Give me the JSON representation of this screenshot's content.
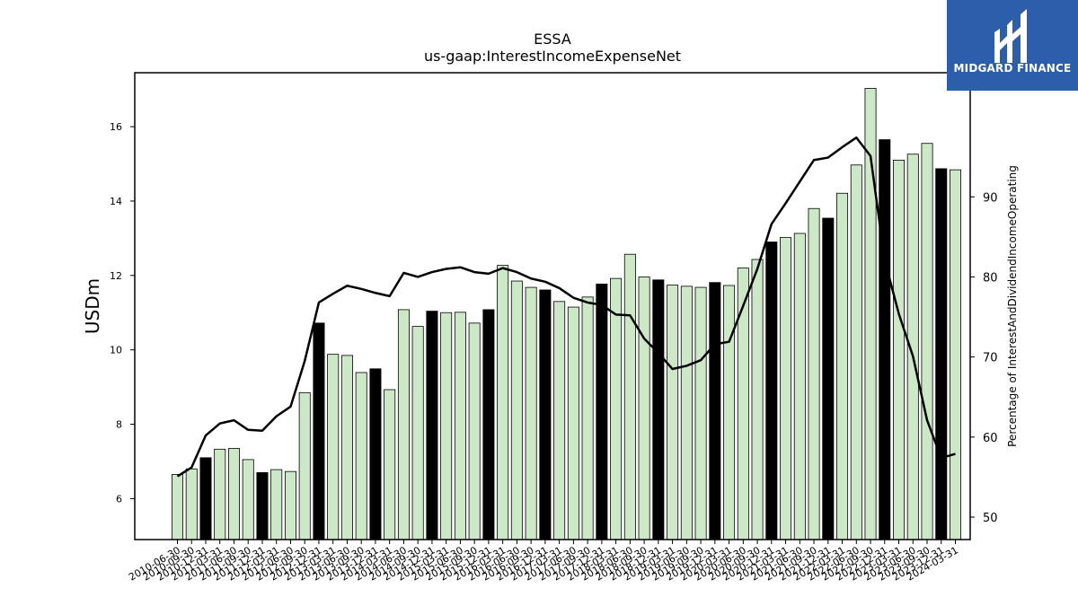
{
  "chart_data": {
    "type": "bar",
    "title": "ESSA",
    "subtitle": "us-gaap:InterestIncomeExpenseNet",
    "ylabel": "USDm",
    "y2label": "Percentage of InterestAndDividendIncomeOperating",
    "ylim": [
      4.9,
      17.45
    ],
    "y2lim": [
      47.2,
      105.5
    ],
    "yticks": [
      6,
      8,
      10,
      12,
      14,
      16
    ],
    "y2ticks": [
      50,
      60,
      70,
      80,
      90
    ],
    "grid": false,
    "categories": [
      "2010-06-30",
      "2010-09-30",
      "2010-12-31",
      "2011-03-31",
      "2011-06-30",
      "2011-09-30",
      "2011-12-31",
      "2012-03-31",
      "2012-06-30",
      "2012-09-30",
      "2012-12-31",
      "2013-03-31",
      "2013-06-30",
      "2013-09-30",
      "2013-12-31",
      "2014-03-31",
      "2014-06-30",
      "2014-09-30",
      "2014-12-31",
      "2015-03-31",
      "2015-06-30",
      "2015-09-30",
      "2015-12-31",
      "2016-03-31",
      "2016-06-30",
      "2016-09-30",
      "2016-12-31",
      "2017-03-31",
      "2017-06-30",
      "2017-09-30",
      "2017-12-31",
      "2018-03-31",
      "2018-06-30",
      "2018-09-30",
      "2018-12-31",
      "2019-03-31",
      "2019-06-30",
      "2019-09-30",
      "2019-12-31",
      "2020-03-31",
      "2020-06-30",
      "2020-09-30",
      "2020-12-31",
      "2021-03-31",
      "2021-06-30",
      "2021-09-30",
      "2021-12-31",
      "2022-03-31",
      "2022-06-30",
      "2022-09-30",
      "2022-12-31",
      "2023-03-31",
      "2023-06-30",
      "2023-09-30",
      "2023-12-31",
      "2024-03-31"
    ],
    "xtick_labels": [
      "2010-06-30",
      "2010-09-30",
      "2010-12-31",
      "2011-03-31",
      "2011-06-30",
      "2011-09-30",
      "2011-12-31",
      "2012-03-31",
      "2012-06-30",
      "2012-09-30",
      "2012-12-31",
      "2013-03-31",
      "2013-06-30",
      "2013-09-30",
      "2013-12-31",
      "2014-03-31",
      "2014-06-30",
      "2014-09-30",
      "2014-12-31",
      "2015-03-31",
      "2015-06-30",
      "2015-09-30",
      "2015-12-31",
      "2016-03-31",
      "2016-06-30",
      "2016-09-30",
      "2016-12-31",
      "2017-03-31",
      "2017-06-30",
      "2017-09-30",
      "2017-12-31",
      "2018-03-31",
      "2018-06-30",
      "2018-09-30",
      "2018-12-31",
      "2019-03-31",
      "2019-06-30",
      "2019-09-30",
      "2019-12-31",
      "2020-03-31",
      "2020-06-30",
      "2020-09-30",
      "2020-12-31",
      "2021-03-31",
      "2021-06-30",
      "2021-09-30",
      "2021-12-31",
      "2022-03-31",
      "2022-06-30",
      "2022-09-30",
      "2022-12-31",
      "2023-03-31",
      "2023-06-30",
      "2023-09-30",
      "2023-12-31",
      "2024-03-31"
    ],
    "series": [
      {
        "axis": "left",
        "kind": "bar",
        "values": [
          6.65,
          6.8,
          7.1,
          7.33,
          7.35,
          7.05,
          6.7,
          6.78,
          6.73,
          8.85,
          10.72,
          9.88,
          9.85,
          9.39,
          9.49,
          8.93,
          11.08,
          10.63,
          11.04,
          11,
          11.01,
          10.72,
          11.08,
          12.27,
          11.85,
          11.68,
          11.61,
          11.3,
          11.15,
          11.42,
          11.77,
          11.92,
          12.57,
          11.96,
          11.88,
          11.74,
          11.71,
          11.68,
          11.81,
          11.73,
          12.2,
          12.43,
          12.9,
          13.02,
          13.13,
          13.8,
          13.54,
          14.21,
          14.97,
          17.03,
          15.65,
          15.1,
          15.26,
          15.55,
          14.87,
          14.84
        ],
        "highlighted": [
          false,
          false,
          true,
          false,
          false,
          false,
          true,
          false,
          false,
          false,
          true,
          false,
          false,
          false,
          true,
          false,
          false,
          false,
          true,
          false,
          false,
          false,
          true,
          false,
          false,
          false,
          true,
          false,
          false,
          false,
          true,
          false,
          false,
          false,
          true,
          false,
          false,
          false,
          true,
          false,
          false,
          false,
          true,
          false,
          false,
          false,
          true,
          false,
          false,
          false,
          true,
          false,
          false,
          false,
          true,
          false
        ]
      },
      {
        "axis": "right",
        "kind": "line",
        "values": [
          55.1,
          56.2,
          60.2,
          61.7,
          62.1,
          60.9,
          60.8,
          62.6,
          63.8,
          69.5,
          76.8,
          77.9,
          78.9,
          78.5,
          78,
          77.6,
          80.5,
          80,
          80.6,
          81,
          81.2,
          80.6,
          80.4,
          81.1,
          80.6,
          79.8,
          79.4,
          78.6,
          77.4,
          76.8,
          76.5,
          75.3,
          75.2,
          72.3,
          70.5,
          68.5,
          68.9,
          69.6,
          71.6,
          71.9,
          76.4,
          81,
          86.6,
          89.2,
          91.9,
          94.6,
          94.9,
          96.2,
          97.4,
          95.1,
          82.1,
          75.4,
          70.1,
          62.1,
          57.4,
          57.9
        ]
      }
    ],
    "colors": {
      "bar_fill": "#cde8c6",
      "bar_highlight": "#000000",
      "bar_edge": "#000000",
      "line": "#000000"
    }
  },
  "logo": {
    "text": "MIDGARD FINANCE",
    "background": "#2d5eab"
  }
}
